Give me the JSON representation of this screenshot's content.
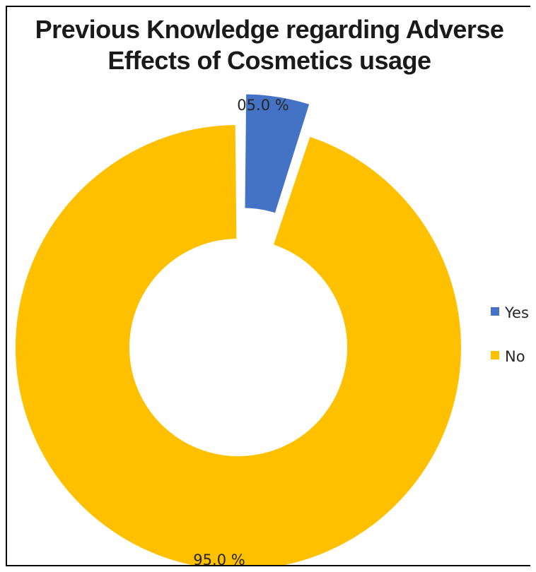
{
  "chart_data": {
    "type": "pie",
    "variant": "doughnut",
    "title_lines": [
      "Previous  Knowledge regarding Adverse",
      "Effects of Cosmetics usage"
    ],
    "categories": [
      "Yes",
      "No"
    ],
    "values": [
      5.0,
      95.0
    ],
    "data_labels": [
      "05.0 %",
      "95.0 %"
    ],
    "colors": [
      "#4472C4",
      "#FFC000"
    ],
    "exploded": [
      "Yes"
    ],
    "legend": {
      "position": "right",
      "entries": [
        "Yes",
        "No"
      ]
    }
  }
}
